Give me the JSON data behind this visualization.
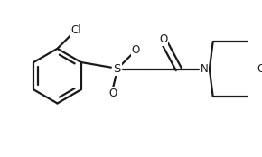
{
  "bg_color": "#ffffff",
  "line_color": "#1a1a1a",
  "line_width": 1.6,
  "font_size_atoms": 8.5,
  "figsize": [
    2.9,
    1.74
  ],
  "dpi": 100,
  "xlim": [
    0,
    290
  ],
  "ylim": [
    0,
    174
  ]
}
